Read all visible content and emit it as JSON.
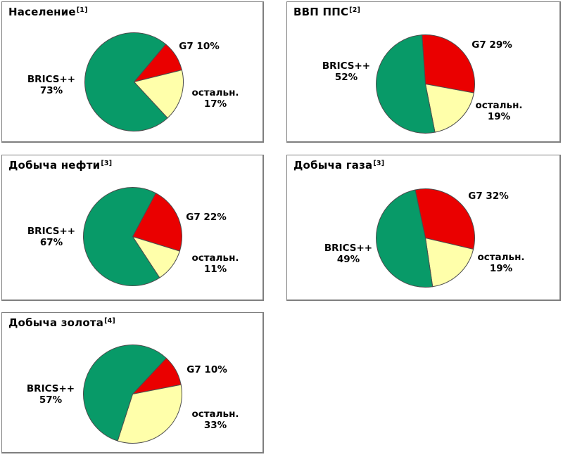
{
  "chart_data": [
    {
      "type": "pie",
      "title": "Население",
      "footnote_ref": "[1]",
      "start_angle_deg": 40,
      "stroke": "#4d4d4d",
      "legend": "none",
      "labels_style": "outside-callout",
      "slices": [
        {
          "name": "G7",
          "value": 10,
          "pct_label": "10%",
          "color": "#ea0000"
        },
        {
          "name": "остальн.",
          "value": 17,
          "pct_label": "17%",
          "color": "#ffffaa"
        },
        {
          "name": "BRICS++",
          "value": 73,
          "pct_label": "73%",
          "color": "#089a68"
        }
      ]
    },
    {
      "type": "pie",
      "title": "ВВП ППС",
      "footnote_ref": "[2]",
      "start_angle_deg": -4,
      "stroke": "#4d4d4d",
      "legend": "none",
      "labels_style": "outside-callout",
      "slices": [
        {
          "name": "G7",
          "value": 29,
          "pct_label": "29%",
          "color": "#ea0000"
        },
        {
          "name": "остальн.",
          "value": 19,
          "pct_label": "19%",
          "color": "#ffffaa"
        },
        {
          "name": "BRICS++",
          "value": 52,
          "pct_label": "52%",
          "color": "#089a68"
        }
      ]
    },
    {
      "type": "pie",
      "title": "Добыча нефти",
      "footnote_ref": "[3]",
      "start_angle_deg": 28,
      "stroke": "#4d4d4d",
      "legend": "none",
      "labels_style": "outside-callout",
      "slices": [
        {
          "name": "G7",
          "value": 22,
          "pct_label": "22%",
          "color": "#ea0000"
        },
        {
          "name": "остальн.",
          "value": 11,
          "pct_label": "11%",
          "color": "#ffffaa"
        },
        {
          "name": "BRICS++",
          "value": 67,
          "pct_label": "67%",
          "color": "#089a68"
        }
      ]
    },
    {
      "type": "pie",
      "title": "Добыча газа",
      "footnote_ref": "[3]",
      "start_angle_deg": -12,
      "stroke": "#4d4d4d",
      "legend": "none",
      "labels_style": "outside-callout",
      "slices": [
        {
          "name": "G7",
          "value": 32,
          "pct_label": "32%",
          "color": "#ea0000"
        },
        {
          "name": "остальн.",
          "value": 19,
          "pct_label": "19%",
          "color": "#ffffaa"
        },
        {
          "name": "BRICS++",
          "value": 49,
          "pct_label": "49%",
          "color": "#089a68"
        }
      ]
    },
    {
      "type": "pie",
      "title": "Добыча золота",
      "footnote_ref": "[4]",
      "start_angle_deg": 43,
      "stroke": "#4d4d4d",
      "legend": "none",
      "labels_style": "outside-callout",
      "slices": [
        {
          "name": "G7",
          "value": 10,
          "pct_label": "10%",
          "color": "#ea0000"
        },
        {
          "name": "остальн.",
          "value": 33,
          "pct_label": "33%",
          "color": "#ffffaa"
        },
        {
          "name": "BRICS++",
          "value": 57,
          "pct_label": "57%",
          "color": "#089a68"
        }
      ]
    }
  ]
}
